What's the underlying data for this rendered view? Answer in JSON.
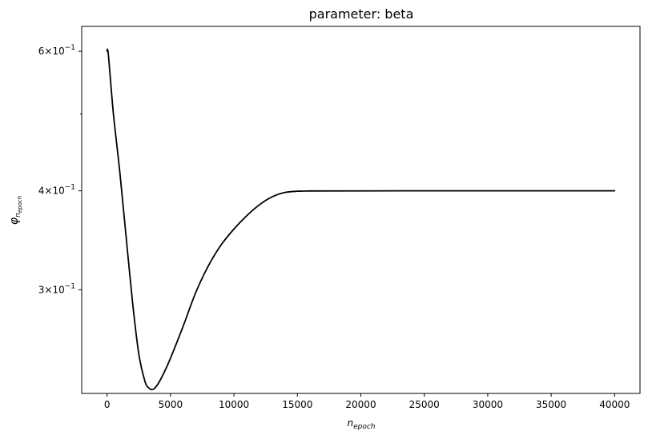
{
  "chart_data": {
    "type": "line",
    "title": "parameter: beta",
    "xlabel": "n",
    "xlabel_sub": "epoch",
    "ylabel": "φ",
    "ylabel_sub_base": "n",
    "ylabel_sub_sub": "epoch",
    "xlim": [
      -2000,
      42000
    ],
    "ylim": [
      0.222,
      0.645
    ],
    "yscale": "log",
    "grid": false,
    "x_ticks": [
      0,
      5000,
      10000,
      15000,
      20000,
      25000,
      30000,
      35000,
      40000
    ],
    "y_ticks": [
      {
        "value": 0.6,
        "mantissa": "6",
        "exp": "−1"
      },
      {
        "value": 0.4,
        "mantissa": "4",
        "exp": "−1"
      },
      {
        "value": 0.3,
        "mantissa": "3",
        "exp": "−1"
      }
    ],
    "y_minor_ticks": [
      0.5
    ],
    "series": [
      {
        "color": "#000000",
        "x": [
          0,
          100,
          500,
          1000,
          1500,
          2000,
          2500,
          3000,
          3300,
          3500,
          3700,
          4000,
          4500,
          5000,
          6000,
          7000,
          8000,
          9000,
          10000,
          11000,
          12000,
          13000,
          14000,
          15000,
          16000,
          20000,
          25000,
          30000,
          35000,
          40000
        ],
        "y": [
          0.6,
          0.594,
          0.5,
          0.423,
          0.35,
          0.29,
          0.249,
          0.2295,
          0.2255,
          0.2245,
          0.225,
          0.228,
          0.236,
          0.246,
          0.27,
          0.298,
          0.322,
          0.342,
          0.358,
          0.372,
          0.384,
          0.393,
          0.398,
          0.3995,
          0.3998,
          0.3999,
          0.4,
          0.4,
          0.4,
          0.4
        ]
      }
    ]
  }
}
